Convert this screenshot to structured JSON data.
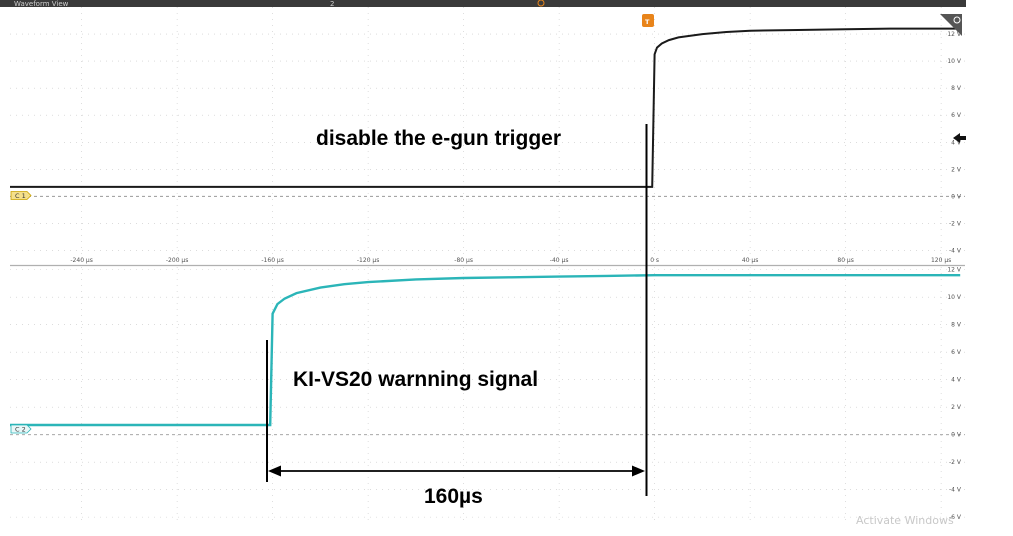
{
  "window": {
    "title": "Waveform View",
    "tab_number": "2"
  },
  "trigger_marker": "T",
  "watermark": "Activate Windows",
  "colors": {
    "ch1": "#1a1a1a",
    "ch2": "#2bb5b8",
    "trigger": "#e8841a",
    "grid": "#c8c8c8"
  },
  "icons": {
    "menu": "corner-badge-icon",
    "trigger_level": "left-arrow-icon"
  },
  "chart_data": [
    {
      "type": "line",
      "channel_label": "C 1",
      "x_unit": "µs",
      "x_ticks": [
        {
          "value": -240,
          "label": "-240 µs"
        },
        {
          "value": -200,
          "label": "-200 µs"
        },
        {
          "value": -160,
          "label": "-160 µs"
        },
        {
          "value": -120,
          "label": "-120 µs"
        },
        {
          "value": -80,
          "label": "-80 µs"
        },
        {
          "value": -40,
          "label": "-40 µs"
        },
        {
          "value": 0,
          "label": "0 s"
        },
        {
          "value": 40,
          "label": "40 µs"
        },
        {
          "value": 80,
          "label": "80 µs"
        },
        {
          "value": 120,
          "label": "120 µs"
        }
      ],
      "y_ticks": [
        {
          "value": 12,
          "label": "12 V"
        },
        {
          "value": 10,
          "label": "10 V"
        },
        {
          "value": 8,
          "label": "8 V"
        },
        {
          "value": 6,
          "label": "6 V"
        },
        {
          "value": 4,
          "label": "4 V"
        },
        {
          "value": 2,
          "label": "2 V"
        },
        {
          "value": 0,
          "label": "0 V"
        },
        {
          "value": -2,
          "label": "-2 V"
        },
        {
          "value": -4,
          "label": "-4 V"
        }
      ],
      "xlim": [
        -270,
        130
      ],
      "ylim": [
        -5,
        14
      ],
      "grid": true,
      "series": [
        {
          "x": [
            -270,
            -1,
            0,
            1,
            3,
            6,
            10,
            20,
            30,
            40,
            60,
            80,
            100,
            120,
            128
          ],
          "y": [
            0.7,
            0.7,
            10.5,
            11.0,
            11.3,
            11.55,
            11.75,
            12.0,
            12.15,
            12.25,
            12.3,
            12.35,
            12.4,
            12.4,
            12.4
          ]
        }
      ],
      "annotation": "disable the e-gun trigger"
    },
    {
      "type": "line",
      "channel_label": "C 2",
      "y_ticks": [
        {
          "value": 12,
          "label": "12 V"
        },
        {
          "value": 10,
          "label": "10 V"
        },
        {
          "value": 8,
          "label": "8 V"
        },
        {
          "value": 6,
          "label": "6 V"
        },
        {
          "value": 4,
          "label": "4 V"
        },
        {
          "value": 2,
          "label": "2 V"
        },
        {
          "value": 0,
          "label": "0 V"
        },
        {
          "value": -2,
          "label": "-2 V"
        },
        {
          "value": -4,
          "label": "-4 V"
        },
        {
          "value": -6,
          "label": "-6 V"
        }
      ],
      "xlim": [
        -270,
        130
      ],
      "ylim": [
        -6.5,
        12.2
      ],
      "grid": true,
      "series": [
        {
          "x": [
            -270,
            -161,
            -160,
            -158,
            -155,
            -150,
            -140,
            -130,
            -120,
            -100,
            -80,
            -60,
            -40,
            -20,
            0,
            40,
            80,
            128
          ],
          "y": [
            0.7,
            0.7,
            8.8,
            9.5,
            9.9,
            10.3,
            10.7,
            10.95,
            11.1,
            11.3,
            11.4,
            11.45,
            11.5,
            11.55,
            11.6,
            11.6,
            11.6,
            11.6
          ]
        }
      ],
      "annotation": "KI-VS20 warnning signal",
      "delay_label": "160µs"
    }
  ]
}
